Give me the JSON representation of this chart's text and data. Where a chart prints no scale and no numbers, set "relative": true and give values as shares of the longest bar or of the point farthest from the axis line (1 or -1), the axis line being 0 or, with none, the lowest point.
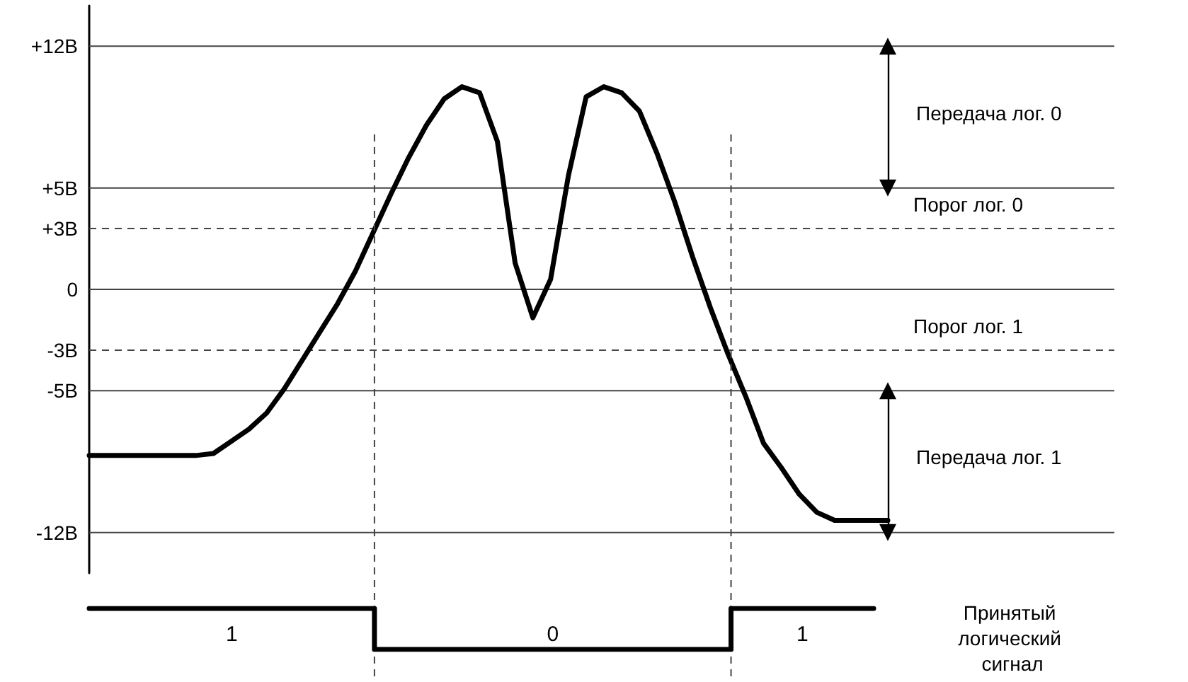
{
  "chart_data": [
    {
      "type": "line",
      "categories": [
        null,
        null,
        null,
        null,
        null,
        null,
        null,
        null,
        null,
        null,
        null,
        null,
        null,
        null,
        null,
        null,
        null,
        null,
        null,
        null,
        null,
        null,
        null,
        null,
        null,
        null,
        null,
        null,
        null,
        null,
        null,
        null,
        null,
        null,
        null,
        null,
        null,
        null,
        null,
        null,
        null,
        null,
        null,
        null,
        null,
        null
      ],
      "series": [
        {
          "color": "#000000",
          "values": [
            -8.2,
            -8.2,
            -8.2,
            -8.2,
            -8.2,
            -8.2,
            -8.2,
            -8.1,
            -7.5,
            -6.9,
            -6.1,
            -4.9,
            -3.5,
            -2.1,
            -0.7,
            0.9,
            2.8,
            4.7,
            6.5,
            8.1,
            9.4,
            10,
            9.7,
            7.3,
            1.3,
            -1.4,
            0.5,
            5.6,
            9.5,
            10,
            9.7,
            8.8,
            6.7,
            4.3,
            1.6,
            -0.9,
            -3.2,
            -5.3,
            -7.6,
            -8.8,
            -10.1,
            -11,
            -11.4,
            -11.4,
            -11.4,
            -11.4
          ]
        }
      ],
      "ylim": [
        -14,
        14
      ],
      "yticks": [
        {
          "value": 12,
          "label": "+12В"
        },
        {
          "value": 5,
          "label": "+5В"
        },
        {
          "value": 3,
          "label": "+3В"
        },
        0,
        {
          "value": -3,
          "label": "-3В"
        },
        {
          "value": -5,
          "label": "-5В"
        },
        {
          "value": -12,
          "label": "-12В"
        }
      ],
      "tick_labels": "y",
      "grid": false,
      "legend": false,
      "marker": "none",
      "line_style": "solid",
      "ref_lines": [
        {
          "axis": "y",
          "value": 12,
          "line_style": "solid",
          "color": "#444444"
        },
        {
          "axis": "y",
          "value": 5,
          "line_style": "solid",
          "color": "#444444"
        },
        {
          "axis": "y",
          "value": 3,
          "line_style": "dashed",
          "color": "#444444",
          "label": "Порог лог. 0"
        },
        {
          "axis": "y",
          "value": 0,
          "line_style": "solid",
          "color": "#444444"
        },
        {
          "axis": "y",
          "value": -3,
          "line_style": "dashed",
          "color": "#444444",
          "label": "Порог лог. 1"
        },
        {
          "axis": "y",
          "value": -5,
          "line_style": "solid",
          "color": "#444444"
        },
        {
          "axis": "y",
          "value": -12,
          "line_style": "solid",
          "color": "#444444"
        }
      ],
      "annotations": [
        "Передача лог. 0",
        "Передача лог. 1"
      ]
    },
    {
      "type": "step",
      "categories": [
        null,
        null,
        null,
        null,
        null,
        null,
        null,
        null,
        null,
        null,
        null,
        null
      ],
      "series": [
        {
          "name": "Принятый логический сигнал",
          "color": "#000000",
          "values": [
            1,
            1,
            1,
            1,
            0,
            0,
            0,
            0,
            0,
            1,
            1,
            1
          ]
        }
      ],
      "relative": true,
      "tick_labels": false,
      "legend": false,
      "marker": "none",
      "line_style": "solid",
      "annotations": [
        "1",
        "0",
        "1"
      ]
    }
  ]
}
